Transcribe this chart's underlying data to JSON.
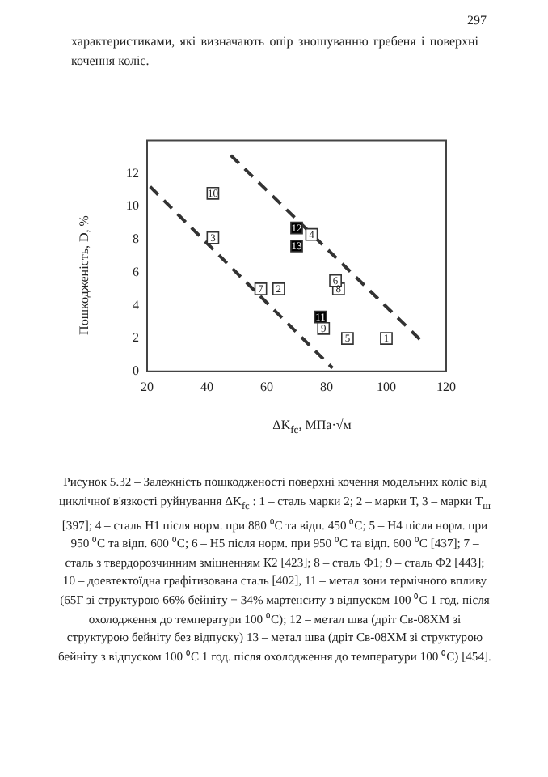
{
  "chart_data": {
    "type": "scatter",
    "xlabel": "ΔK$_{fc}$, МПа·√м",
    "ylabel": "Пошкодженість, D, %",
    "xlim": [
      20,
      120
    ],
    "xticks": [
      20,
      40,
      60,
      80,
      100,
      120
    ],
    "ylim": [
      0,
      14
    ],
    "yticks": [
      0,
      2,
      4,
      6,
      8,
      10,
      12
    ],
    "marker": "square",
    "series": [
      {
        "name": "1",
        "type": "scatter",
        "color": "#ffffff",
        "x": [
          100
        ],
        "values": [
          2
        ]
      },
      {
        "name": "2",
        "type": "scatter",
        "color": "#ffffff",
        "x": [
          64
        ],
        "values": [
          5
        ]
      },
      {
        "name": "3",
        "type": "scatter",
        "color": "#ffffff",
        "x": [
          42
        ],
        "values": [
          8.1
        ]
      },
      {
        "name": "4",
        "type": "scatter",
        "color": "#ffffff",
        "x": [
          75
        ],
        "values": [
          8.3
        ]
      },
      {
        "name": "5",
        "type": "scatter",
        "color": "#ffffff",
        "x": [
          87
        ],
        "values": [
          2
        ]
      },
      {
        "name": "6",
        "type": "scatter",
        "color": "#ffffff",
        "x": [
          83
        ],
        "values": [
          5.5
        ]
      },
      {
        "name": "7",
        "type": "scatter",
        "color": "#ffffff",
        "x": [
          58
        ],
        "values": [
          5
        ]
      },
      {
        "name": "8",
        "type": "scatter",
        "color": "#ffffff",
        "x": [
          84
        ],
        "values": [
          5
        ]
      },
      {
        "name": "9",
        "type": "scatter",
        "color": "#ffffff",
        "x": [
          79
        ],
        "values": [
          2.6
        ]
      },
      {
        "name": "10",
        "type": "scatter",
        "color": "#ffffff",
        "x": [
          42
        ],
        "values": [
          10.8
        ]
      },
      {
        "name": "11",
        "type": "scatter",
        "color": "#000000",
        "x": [
          78
        ],
        "values": [
          3.3
        ]
      },
      {
        "name": "12",
        "type": "scatter",
        "color": "#000000",
        "x": [
          70
        ],
        "values": [
          8.7
        ]
      },
      {
        "name": "13",
        "type": "scatter",
        "color": "#000000",
        "x": [
          70
        ],
        "values": [
          7.6
        ]
      },
      {
        "type": "line",
        "color": "#333333",
        "line_style": "dashed",
        "marker": "none",
        "x": [
          21,
          82
        ],
        "values": [
          11.2,
          0.2
        ]
      },
      {
        "type": "line",
        "color": "#333333",
        "line_style": "dashed",
        "marker": "none",
        "x": [
          48,
          112
        ],
        "values": [
          13.1,
          1.8
        ]
      }
    ],
    "annotations": [
      "297",
      "характеристиками, які визначають опір зношуванню гребеня і поверхні кочення коліс.",
      "Рисунок 5.32 – Залежність пошкодженості поверхні кочення модельних коліс від циклічної в'язкості руйнування ΔK$_{fc}$ : 1 – сталь марки 2; 2 – марки Т, 3 – марки Т$_{ш}$ [397]; 4 – сталь Н1 після норм. при 880 ⁰C та відп. 450 ⁰C; 5 – Н4 після норм. при 950 ⁰C та відп. 600 ⁰C; 6 – Н5 після норм. при 950 ⁰C та відп. 600 ⁰C [437]; 7 – сталь з твердорозчинним зміцненням К2 [423]; 8 – сталь Ф1; 9 – сталь Ф2 [443]; 10 – доевтектоїдна графітизована сталь [402], 11 – метал зони термічного впливу (65Г зі структурою 66% бейніту + 34% мартенситу з відпуском 100 ⁰C 1 год. після охолодження до температури 100 ⁰C); 12 – метал шва (дріт Св-08ХМ зі структурою бейніту без відпуску) 13 – метал шва (дріт Св-08ХМ зі структурою бейніту з відпуском 100 ⁰C 1 год. після охолодження до температури 100 ⁰C) [454]."
    ]
  }
}
